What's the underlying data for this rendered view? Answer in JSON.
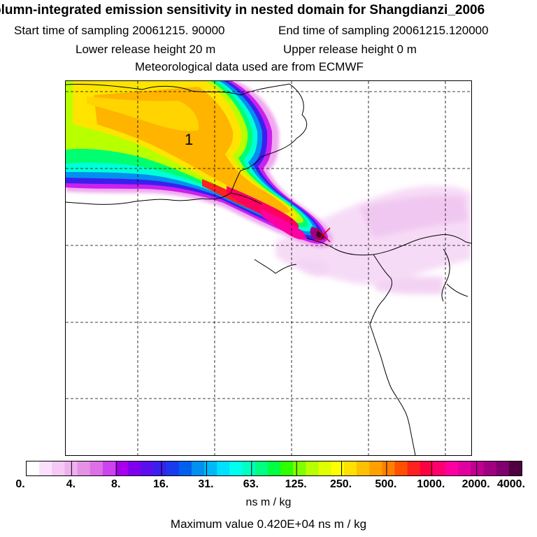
{
  "header": {
    "title": "olumn-integrated emission sensitivity in nested domain for Shangdianzi_2006",
    "start_label": "Start time of sampling 20061215. 90000",
    "end_label": "End time of sampling 20061215.120000",
    "lower_label": "Lower release height   20 m",
    "upper_label": "Upper release height    0 m",
    "met_label": "Meteorological data used are from ECMWF"
  },
  "map": {
    "contour_label": "1",
    "receptor_marker": "x-marker-icon",
    "plume_color_scale": [
      "#ffffff",
      "#ff00ff",
      "#0000ff",
      "#00ffff",
      "#00ff00",
      "#ffff00",
      "#ffa500",
      "#ff0000",
      "#ff0080",
      "#400030"
    ]
  },
  "colorbar": {
    "ticks": [
      "0.",
      "4.",
      "8.",
      "16.",
      "31.",
      "63.",
      "125.",
      "250.",
      "500.",
      "1000.",
      "2000.",
      "4000."
    ],
    "units": "ns m / kg",
    "max_value": "Maximum value  0.420E+04 ns m / kg",
    "colors": [
      "#ffffff",
      "#fbe0fb",
      "#f5c8f5",
      "#eeb0ee",
      "#e690e6",
      "#dd70e6",
      "#cc44ee",
      "#a800ee",
      "#8000ee",
      "#5a10ee",
      "#3a20ee",
      "#1a3aee",
      "#0060ee",
      "#0090f0",
      "#00b8f8",
      "#00e0ff",
      "#00ffee",
      "#00ffc0",
      "#00ff80",
      "#00ff40",
      "#30ff00",
      "#80ff00",
      "#b8ff00",
      "#e0ff00",
      "#ffff00",
      "#ffe000",
      "#ffc000",
      "#ffa000",
      "#ff8000",
      "#ff5000",
      "#ff2020",
      "#ff0040",
      "#ff0070",
      "#ff00a0",
      "#e000a0",
      "#c00090",
      "#a00080",
      "#800070",
      "#500040"
    ]
  }
}
